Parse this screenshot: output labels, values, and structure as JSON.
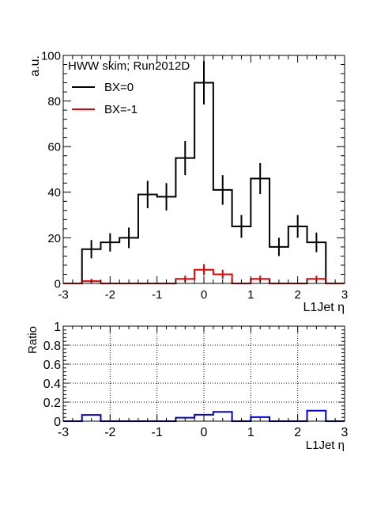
{
  "chart_data": [
    {
      "type": "histogram",
      "title": "",
      "legend_title": "HWW skim; Run2012D",
      "legend_position": "top-left",
      "xlabel": "L1Jet η",
      "ylabel": "a.u.",
      "xlim": [
        -3,
        3
      ],
      "ylim": [
        0,
        100
      ],
      "xticks": [
        "-3",
        "-2",
        "-1",
        "0",
        "1",
        "2",
        "3"
      ],
      "yticks": [
        "0",
        "20",
        "40",
        "60",
        "80",
        "100"
      ],
      "bin_edges": [
        -3.0,
        -2.6,
        -2.2,
        -1.8,
        -1.4,
        -1.0,
        -0.6,
        -0.2,
        0.2,
        0.6,
        1.0,
        1.4,
        1.8,
        2.2,
        2.6,
        3.0
      ],
      "series": [
        {
          "name": "BX=0",
          "color": "#000000",
          "values": [
            0,
            15,
            18,
            20,
            39,
            38,
            55,
            88,
            41,
            25,
            46,
            16,
            25,
            18,
            0
          ],
          "errors": [
            0,
            4,
            4,
            4.5,
            6,
            6,
            7.5,
            9.5,
            6.5,
            5,
            6.8,
            4,
            5,
            4.3,
            0
          ]
        },
        {
          "name": "BX=-1",
          "color": "#ee0000",
          "values": [
            0,
            1,
            0,
            0,
            0,
            0,
            2,
            6,
            4,
            0,
            2,
            0,
            0,
            2,
            0
          ],
          "errors": [
            0,
            1,
            0,
            0,
            0,
            0,
            1.4,
            2.4,
            2,
            0,
            1.4,
            0,
            0,
            1.4,
            0
          ]
        }
      ]
    },
    {
      "type": "histogram",
      "title": "",
      "xlabel": "L1Jet η",
      "ylabel": "Ratio",
      "xlim": [
        -3,
        3
      ],
      "ylim": [
        0,
        1
      ],
      "grid": true,
      "xticks": [
        "-3",
        "-2",
        "-1",
        "0",
        "1",
        "2",
        "3"
      ],
      "yticks": [
        "0",
        "0.2",
        "0.4",
        "0.6",
        "0.8",
        "1"
      ],
      "bin_edges": [
        -3.0,
        -2.6,
        -2.2,
        -1.8,
        -1.4,
        -1.0,
        -0.6,
        -0.2,
        0.2,
        0.6,
        1.0,
        1.4,
        1.8,
        2.2,
        2.6,
        3.0
      ],
      "series": [
        {
          "color": "#0000ee",
          "values": [
            0,
            0.066,
            0,
            0,
            0,
            0,
            0.036,
            0.068,
            0.098,
            0,
            0.043,
            0,
            0,
            0.11,
            0
          ]
        }
      ]
    }
  ]
}
